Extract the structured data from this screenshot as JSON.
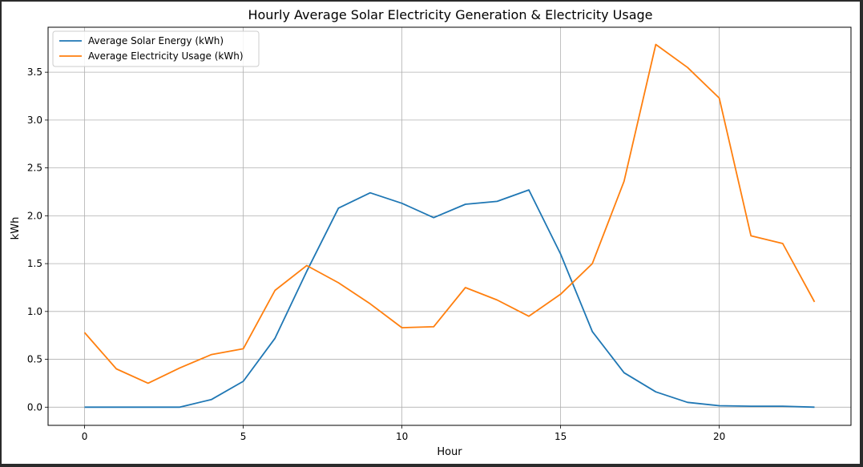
{
  "chart_data": {
    "type": "line",
    "title": "Hourly Average Solar Electricity Generation & Electricity Usage",
    "xlabel": "Hour",
    "ylabel": "kWh",
    "xlim": [
      -1.15,
      24.15
    ],
    "ylim": [
      -0.19,
      3.97
    ],
    "grid": true,
    "legend_position": "top-left",
    "x_ticks": [
      0,
      5,
      10,
      15,
      20
    ],
    "y_ticks": [
      0.0,
      0.5,
      1.0,
      1.5,
      2.0,
      2.5,
      3.0,
      3.5
    ],
    "x_tick_labels": [
      "0",
      "5",
      "10",
      "15",
      "20"
    ],
    "y_tick_labels": [
      "0.0",
      "0.5",
      "1.0",
      "1.5",
      "2.0",
      "2.5",
      "3.0",
      "3.5"
    ],
    "x": [
      0,
      1,
      2,
      3,
      4,
      5,
      6,
      7,
      8,
      9,
      10,
      11,
      12,
      13,
      14,
      15,
      16,
      17,
      18,
      19,
      20,
      21,
      22,
      23
    ],
    "series": [
      {
        "name": "Average Solar Energy (kWh)",
        "color": "#1f77b4",
        "values": [
          0.0,
          0.0,
          0.0,
          0.0,
          0.08,
          0.27,
          0.72,
          1.42,
          2.08,
          2.24,
          2.13,
          1.98,
          2.12,
          2.15,
          2.27,
          1.6,
          0.79,
          0.36,
          0.16,
          0.05,
          0.015,
          0.01,
          0.01,
          0.0
        ]
      },
      {
        "name": "Average Electricity Usage (kWh)",
        "color": "#ff7f0e",
        "values": [
          0.78,
          0.4,
          0.25,
          0.41,
          0.55,
          0.61,
          1.22,
          1.48,
          1.3,
          1.08,
          0.83,
          0.84,
          1.25,
          1.12,
          0.95,
          1.18,
          1.5,
          2.36,
          3.79,
          3.55,
          3.23,
          1.79,
          1.71,
          1.1
        ]
      }
    ]
  }
}
